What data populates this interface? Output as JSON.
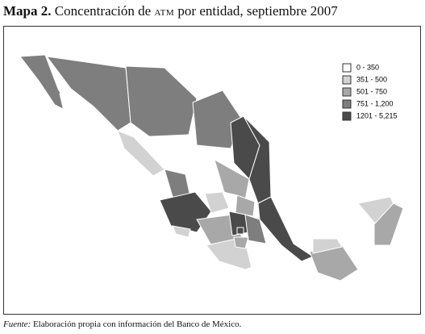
{
  "title": {
    "label": "Mapa 2.",
    "text_before": "Concentración de",
    "acronym": "ATM",
    "text_after": "por entidad, septiembre 2007"
  },
  "legend": [
    {
      "label": "0 - 350",
      "color": "#ffffff"
    },
    {
      "label": "351 - 500",
      "color": "#d2d2d2"
    },
    {
      "label": "501 - 750",
      "color": "#a8a8a8"
    },
    {
      "label": "751 - 1,200",
      "color": "#7e7e7e"
    },
    {
      "label": "1201 - 5,215",
      "color": "#4a4a4a"
    }
  ],
  "source": {
    "label": "Fuente:",
    "text": "Elaboración propia con información del Banco de México."
  }
}
